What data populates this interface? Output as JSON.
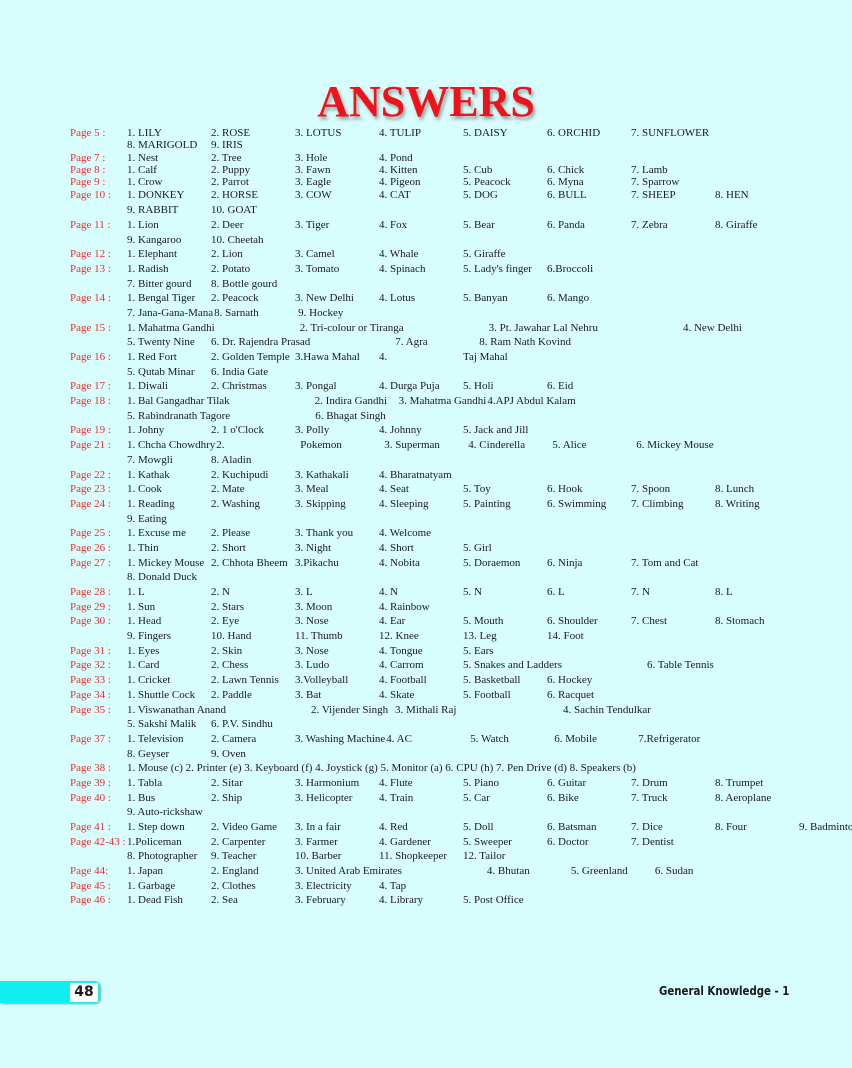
{
  "title": "ANSWERS",
  "footer": {
    "page_number": "48",
    "book_title": "General Knowledge - 1"
  },
  "colors": {
    "label": "#ee2b2b",
    "title": "#f0121a",
    "background": "#d8fdfd",
    "tab": "#10eef0"
  },
  "sections": [
    {
      "label": "Page 5 :",
      "rows": [
        [
          "1. LILY",
          "2. ROSE",
          "3. LOTUS",
          "4. TULIP",
          "5. DAISY",
          "6. ORCHID",
          "7.  SUNFLOWER"
        ],
        [
          "8. MARIGOLD",
          "9. IRIS"
        ]
      ]
    },
    {
      "label": "Page 7 :",
      "rows": [
        [
          "1.  Nest",
          "2. Tree",
          "3.  Hole",
          "4.  Pond"
        ]
      ]
    },
    {
      "label": "Page 8 :",
      "rows": [
        [
          "1. Calf",
          "2. Puppy",
          "3. Fawn",
          "4. Kitten",
          "5. Cub",
          "6. Chick",
          "7. Lamb"
        ]
      ]
    },
    {
      "label": "Page 9 :",
      "rows": [
        [
          "1.  Crow",
          "2.  Parrot",
          "3.  Eagle",
          "4.  Pigeon",
          "5.  Peacock",
          "6.  Myna",
          "7.  Sparrow"
        ]
      ]
    },
    {
      "label": "Page 10 :",
      "rows": [
        [
          "1. DONKEY",
          "2. HORSE",
          "3. COW",
          "4. CAT",
          "5. DOG",
          "6. BULL",
          "7. SHEEP",
          "8. HEN"
        ],
        [
          "9. RABBIT",
          "10. GOAT"
        ]
      ]
    },
    {
      "label": "Page 11 :",
      "rows": [
        [
          "1.  Lion",
          "2.  Deer",
          "3.  Tiger",
          "4.  Fox",
          "5.  Bear",
          "6.  Panda",
          "7. Zebra",
          "8. Giraffe"
        ],
        [
          "9. Kangaroo",
          "10. Cheetah"
        ]
      ]
    },
    {
      "label": "Page 12 :",
      "rows": [
        [
          "1.  Elephant",
          "2.  Lion",
          "3.  Camel",
          "4.  Whale",
          "5.  Giraffe"
        ]
      ]
    },
    {
      "label": "Page 13 :",
      "rows": [
        [
          "1.  Radish",
          "2.  Potato",
          "3.  Tomato",
          "4.  Spinach",
          "5.  Lady's finger",
          "6.Broccoli"
        ],
        [
          "7.  Bitter gourd",
          "8.  Bottle gourd"
        ]
      ]
    },
    {
      "label": "Page 14 :",
      "rows": [
        [
          "1. Bengal Tiger",
          "2. Peacock",
          "3. New Delhi",
          "4. Lotus",
          "5. Banyan",
          "6. Mango"
        ],
        [
          "7. Jana-Gana-Mana",
          "8. Sarnath",
          "9. Hockey"
        ]
      ]
    },
    {
      "label": "Page 15 :",
      "rows": [
        [
          "1.  Mahatma Gandhi",
          "",
          "2.  Tri-colour or Tiranga",
          "",
          "3.  Pt. Jawahar Lal Nehru",
          "",
          "4. New Delhi"
        ],
        [
          "5.  Twenty Nine",
          "6. Dr. Rajendra Prasad",
          "",
          "7. Agra",
          "8. Ram Nath Kovind"
        ]
      ]
    },
    {
      "label": "Page 16 :",
      "rows": [
        [
          "1.  Red Fort",
          "2.  Golden Temple",
          "3.Hawa Mahal",
          "4.",
          "Taj Mahal"
        ],
        [
          "5.  Qutab Minar",
          "6.  India Gate"
        ]
      ]
    },
    {
      "label": "Page 17 :",
      "rows": [
        [
          "1.  Diwali",
          "2.  Christmas",
          "3.  Pongal",
          "4.  Durga Puja",
          "5.  Holi",
          "6.  Eid"
        ]
      ]
    },
    {
      "label": "Page 18 :",
      "rows": [
        [
          "1. Bal Gangadhar Tilak",
          "",
          "2.  Indira Gandhi",
          "3. Mahatma Gandhi",
          "4.APJ Abdul Kalam"
        ],
        [
          "5.  Rabindranath Tagore",
          "",
          "6. Bhagat Singh"
        ]
      ]
    },
    {
      "label": "Page 19 :",
      "rows": [
        [
          "1.  Johny",
          "2.  1 o'Clock",
          "3.  Polly",
          "4.  Johnny",
          "5.  Jack and Jill"
        ]
      ]
    },
    {
      "label": "Page 21 :",
      "rows": [
        [
          "1.  Chcha Chowdhry",
          "2.",
          "Pokemon",
          "3.  Superman",
          "4.  Cinderella",
          "5.  Alice",
          "6.  Mickey Mouse"
        ],
        [
          "7.  Mowgli",
          "8.  Aladin"
        ]
      ]
    },
    {
      "label": "Page 22 :",
      "rows": [
        [
          "1.  Kathak",
          "2.  Kuchipudi",
          "3. Kathakali",
          "4. Bharatnatyam"
        ]
      ]
    },
    {
      "label": "Page 23 :",
      "rows": [
        [
          "1.  Cook",
          "2.  Mate",
          "3.  Meal",
          "4.  Seat",
          "5.  Toy",
          "6.  Hook",
          "7.  Spoon",
          "8.  Lunch"
        ]
      ]
    },
    {
      "label": "Page 24 :",
      "rows": [
        [
          "1.  Reading",
          "2.  Washing",
          "3.  Skipping",
          "4.  Sleeping",
          "5.  Painting",
          "6.  Swimming",
          "7.  Climbing",
          "8.  Writing"
        ],
        [
          "9.  Eating"
        ]
      ]
    },
    {
      "label": "Page 25 :",
      "rows": [
        [
          "1.  Excuse me",
          "2.  Please",
          "3.  Thank you",
          "4.  Welcome"
        ]
      ]
    },
    {
      "label": "Page 26 :",
      "rows": [
        [
          "1.  Thin",
          "2.  Short",
          "3.  Night",
          "4.  Short",
          "5.  Girl"
        ]
      ]
    },
    {
      "label": "Page 27 :",
      "rows": [
        [
          "1.  Mickey Mouse",
          "2. Chhota Bheem",
          "3.Pikachu",
          "4.  Nobita",
          "5.  Doraemon",
          "6.  Ninja",
          "7.  Tom and Cat"
        ],
        [
          "8.  Donald Duck"
        ]
      ]
    },
    {
      "label": "Page 28 :",
      "rows": [
        [
          "1.  L",
          "2.  N",
          "3.  L",
          "4.  N",
          "5.  N",
          "6.  L",
          "7.  N",
          "8.  L"
        ]
      ]
    },
    {
      "label": "Page 29 :",
      "rows": [
        [
          "1. Sun",
          "2.  Stars",
          "3.  Moon",
          "4.  Rainbow"
        ]
      ]
    },
    {
      "label": "Page 30 :",
      "rows": [
        [
          "1.  Head",
          "2.  Eye",
          "3.  Nose",
          "4.  Ear",
          "5.  Mouth",
          "6.  Shoulder",
          "7.  Chest",
          "8.  Stomach"
        ],
        [
          "9.  Fingers",
          "10. Hand",
          "11. Thumb",
          "12. Knee",
          "13. Leg",
          "14. Foot"
        ]
      ]
    },
    {
      "label": "Page 31 :",
      "rows": [
        [
          "1.  Eyes",
          "2.  Skin",
          "3.  Nose",
          "4.  Tongue",
          "5.  Ears"
        ]
      ]
    },
    {
      "label": "Page 32 :",
      "rows": [
        [
          "1.  Card",
          "2.  Chess",
          "3.  Ludo",
          "4.  Carrom",
          "5.  Snakes and Ladders",
          "",
          "6.  Table Tennis"
        ]
      ]
    },
    {
      "label": "Page 33 :",
      "rows": [
        [
          "1.  Cricket",
          "2.  Lawn Tennis",
          "3.Volleyball",
          "4.  Football",
          "5.  Basketball",
          "6.  Hockey"
        ]
      ]
    },
    {
      "label": "Page 34 :",
      "rows": [
        [
          "1. Shuttle Cock",
          "2. Paddle",
          "3. Bat",
          "4. Skate",
          "5. Football",
          "6. Racquet"
        ]
      ]
    },
    {
      "label": "Page 35 :",
      "rows": [
        [
          "1.  Viswanathan Anand",
          "",
          "2.  Vijender Singh",
          "3. Mithali Raj",
          "",
          "4.  Sachin Tendulkar"
        ],
        [
          "5.  Sakshi Malik",
          "6. P.V. Sindhu"
        ]
      ]
    },
    {
      "label": "Page 37 :",
      "rows": [
        [
          "1. Television",
          "2.  Camera",
          "3. Washing Machine",
          "4. AC",
          "5. Watch",
          "6. Mobile",
          "7.Refrigerator"
        ],
        [
          "8. Geyser",
          "9. Oven"
        ]
      ]
    },
    {
      "label": "Page 38 :",
      "rows": [
        [
          "1. Mouse (c)  2. Printer (e)  3. Keyboard (f)  4. Joystick (g)  5. Monitor (a)  6. CPU (h)  7. Pen Drive (d)  8. Speakers (b)"
        ]
      ]
    },
    {
      "label": "Page 39 :",
      "rows": [
        [
          "1.  Tabla",
          "2.  Sitar",
          "3.  Harmonium",
          "4.  Flute",
          "5.  Piano",
          "6.  Guitar",
          "7.  Drum",
          "8.  Trumpet"
        ]
      ]
    },
    {
      "label": "Page 40 :",
      "rows": [
        [
          "1.  Bus",
          "2.  Ship",
          "3.  Helicopter",
          "4.  Train",
          "5.  Car",
          "6.  Bike",
          "7.  Truck",
          "8.  Aeroplane"
        ],
        [
          "9.  Auto-rickshaw"
        ]
      ]
    },
    {
      "label": "Page 41 :",
      "rows": [
        [
          "1. Step down",
          "2. Video Game",
          "3. In a fair",
          "4. Red",
          "5. Doll",
          "6. Batsman",
          "7. Dice",
          "8. Four",
          "9. Badminton"
        ]
      ]
    },
    {
      "label": "Page 42-43 :",
      "rows": [
        [
          "1.Policeman",
          "2. Carpenter",
          "3. Farmer",
          "4. Gardener",
          "5. Sweeper",
          "6. Doctor",
          "7. Dentist"
        ],
        [
          "8. Photographer",
          "9. Teacher",
          "10. Barber",
          "11. Shopkeeper",
          "12. Tailor"
        ]
      ]
    },
    {
      "label": "Page 44:",
      "rows": [
        [
          "1.  Japan",
          "2.  England",
          "3.  United Arab Emirates",
          "",
          "4.  Bhutan",
          "5.  Greenland",
          "6.  Sudan"
        ]
      ]
    },
    {
      "label": "Page 45 :",
      "rows": [
        [
          "1.  Garbage",
          "2.  Clothes",
          "3.  Electricity",
          "4.  Tap"
        ]
      ]
    },
    {
      "label": "Page 46 :",
      "rows": [
        [
          "1.  Dead Fish",
          "2.  Sea",
          "3.  February",
          "4.  Library",
          "5.  Post Office"
        ]
      ]
    }
  ]
}
